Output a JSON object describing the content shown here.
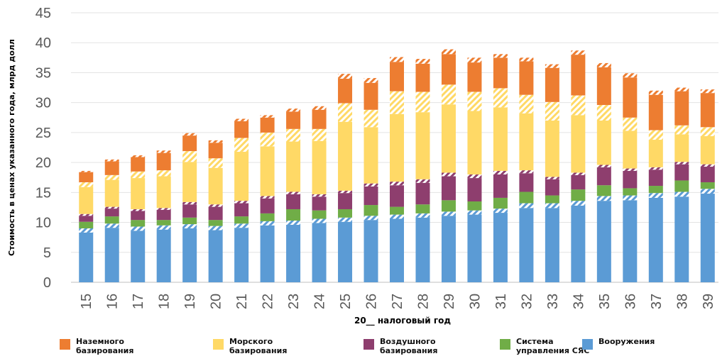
{
  "chart_data": {
    "type": "bar",
    "stacked": true,
    "title": "",
    "xlabel": "20__ налоговый год",
    "ylabel": "Стоимость в ценах указанного года, млрд долл",
    "ylim": [
      0,
      45
    ],
    "yticks": [
      0,
      5,
      10,
      15,
      20,
      25,
      30,
      35,
      40,
      45
    ],
    "grid": true,
    "legend_position": "bottom",
    "categories": [
      "15",
      "16",
      "17",
      "18",
      "19",
      "20",
      "21",
      "22",
      "23",
      "24",
      "25",
      "26",
      "27",
      "28",
      "29",
      "30",
      "31",
      "32",
      "33",
      "34",
      "35",
      "36",
      "37",
      "38",
      "39"
    ],
    "series": [
      {
        "name": "Вооружения",
        "color": "#5B9BD5",
        "values": [
          9.0,
          9.8,
          9.3,
          9.5,
          9.7,
          9.4,
          9.8,
          10.2,
          10.3,
          10.6,
          10.8,
          11.1,
          11.3,
          11.5,
          11.8,
          12.0,
          12.3,
          13.2,
          13.2,
          13.6,
          14.4,
          14.5,
          14.9,
          15.1,
          15.6
        ],
        "hatched": [
          0.7,
          0.7,
          0.7,
          0.7,
          0.7,
          0.7,
          0.7,
          0.7,
          0.7,
          0.7,
          0.7,
          0.7,
          0.7,
          0.7,
          0.7,
          0.7,
          0.7,
          0.8,
          0.8,
          0.8,
          0.8,
          0.8,
          0.8,
          0.8,
          0.8
        ]
      },
      {
        "name": "Система\nуправления СЯС",
        "color": "#70AD47",
        "values": [
          1.1,
          1.2,
          1.1,
          0.9,
          1.1,
          1.0,
          1.2,
          1.3,
          1.9,
          1.4,
          1.4,
          1.8,
          1.3,
          1.5,
          1.9,
          1.5,
          1.8,
          1.9,
          1.3,
          1.9,
          1.8,
          1.2,
          1.2,
          1.9,
          1.1
        ],
        "hatched": [
          0,
          0,
          0,
          0,
          0,
          0,
          0,
          0,
          0,
          0,
          0,
          0,
          0,
          0,
          0,
          0,
          0,
          0,
          0,
          0,
          0,
          0,
          0,
          0,
          0
        ]
      },
      {
        "name": "Воздушного\nбазирования",
        "color": "#8E3E6E",
        "values": [
          1.3,
          1.6,
          1.8,
          2.0,
          2.6,
          2.6,
          2.6,
          2.9,
          2.9,
          2.7,
          3.1,
          3.6,
          4.2,
          4.2,
          4.6,
          4.5,
          4.5,
          3.6,
          3.1,
          2.8,
          3.4,
          3.3,
          3.1,
          3.1,
          3.0
        ],
        "hatched": [
          0.3,
          0.3,
          0.3,
          0.3,
          0.4,
          0.4,
          0.4,
          0.4,
          0.4,
          0.4,
          0.4,
          0.5,
          0.6,
          0.6,
          0.6,
          0.6,
          0.6,
          0.5,
          0.4,
          0.4,
          0.4,
          0.4,
          0.4,
          0.4,
          0.4
        ]
      },
      {
        "name": "Морского\nбазирования",
        "color": "#FFD966",
        "values": [
          5.3,
          5.3,
          6.3,
          6.3,
          8.5,
          7.7,
          10.5,
          10.6,
          10.5,
          10.9,
          14.6,
          12.3,
          15.1,
          14.6,
          14.7,
          13.8,
          13.8,
          12.6,
          12.5,
          12.9,
          10.0,
          8.5,
          6.2,
          6.1,
          6.2
        ],
        "hatched": [
          0.8,
          0.8,
          1.1,
          1.0,
          1.8,
          1.6,
          2.3,
          2.3,
          2.1,
          2.0,
          3.1,
          2.9,
          3.8,
          3.4,
          3.3,
          3.2,
          3.2,
          3.1,
          3.1,
          3.3,
          2.6,
          2.2,
          1.6,
          1.5,
          1.5
        ]
      },
      {
        "name": "Наземного\nбазирования",
        "color": "#ED7D31",
        "values": [
          1.9,
          2.6,
          2.7,
          3.3,
          3.0,
          3.0,
          3.2,
          2.9,
          3.4,
          3.8,
          4.9,
          5.3,
          5.7,
          5.5,
          5.9,
          5.7,
          5.7,
          6.2,
          6.3,
          7.5,
          7.0,
          7.4,
          6.6,
          6.3,
          6.3
        ],
        "hatched": [
          0.2,
          0.3,
          0.3,
          0.4,
          0.4,
          0.4,
          0.4,
          0.4,
          0.5,
          0.6,
          0.8,
          0.8,
          0.8,
          0.8,
          0.8,
          0.8,
          0.6,
          0.6,
          0.6,
          0.7,
          0.7,
          0.7,
          0.7,
          0.6,
          0.6
        ]
      }
    ]
  },
  "legend_order": [
    "Наземного\nбазирования",
    "Морского\nбазирования",
    "Воздушного\nбазирования",
    "Система\nуправления СЯС",
    "Вооружения"
  ]
}
